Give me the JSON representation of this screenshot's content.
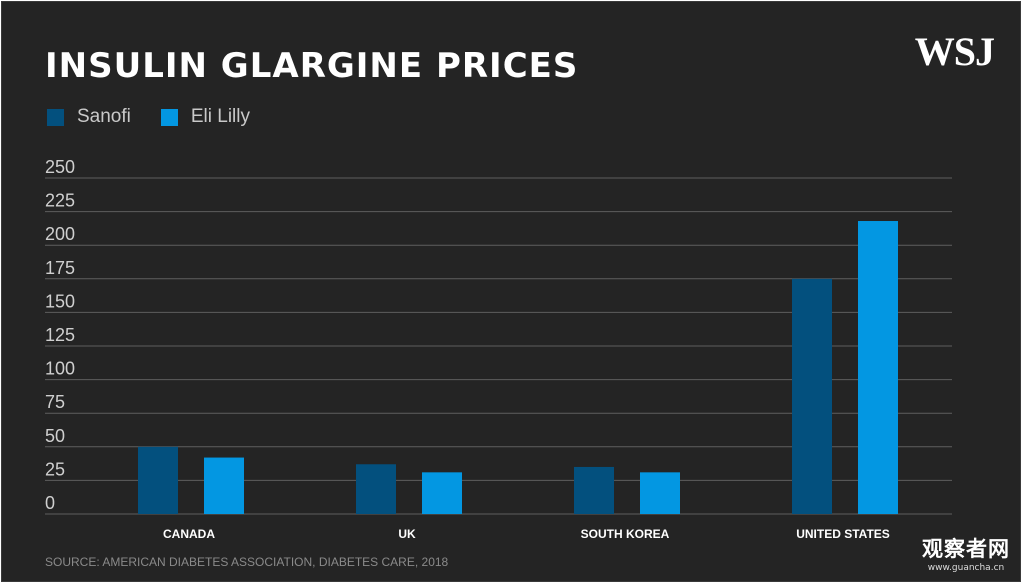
{
  "header": {
    "title": "INSULIN GLARGINE PRICES",
    "logo": "WSJ"
  },
  "footer": {
    "source": "SOURCE: AMERICAN DIABETES ASSOCIATION, DIABETES CARE, 2018"
  },
  "watermark": {
    "name": "观察者网",
    "url": "www.guancha.cn"
  },
  "colors": {
    "background": "#242424",
    "sanofi": "#03507e",
    "eli_lilly": "#0397e2",
    "gridline": "#5e5e5e"
  },
  "chart_data": {
    "type": "bar",
    "title": "INSULIN GLARGINE PRICES",
    "categories": [
      "CANADA",
      "UK",
      "SOUTH KOREA",
      "UNITED STATES"
    ],
    "series": [
      {
        "name": "Sanofi",
        "values": [
          50,
          37,
          35,
          175
        ]
      },
      {
        "name": "Eli Lilly",
        "values": [
          42,
          31,
          31,
          218
        ]
      }
    ],
    "yticks": [
      0,
      25,
      50,
      75,
      100,
      125,
      150,
      175,
      200,
      225,
      250
    ],
    "ylim": [
      0,
      250
    ],
    "xlabel": "",
    "ylabel": "",
    "grid": true,
    "legend_position": "top-left"
  }
}
